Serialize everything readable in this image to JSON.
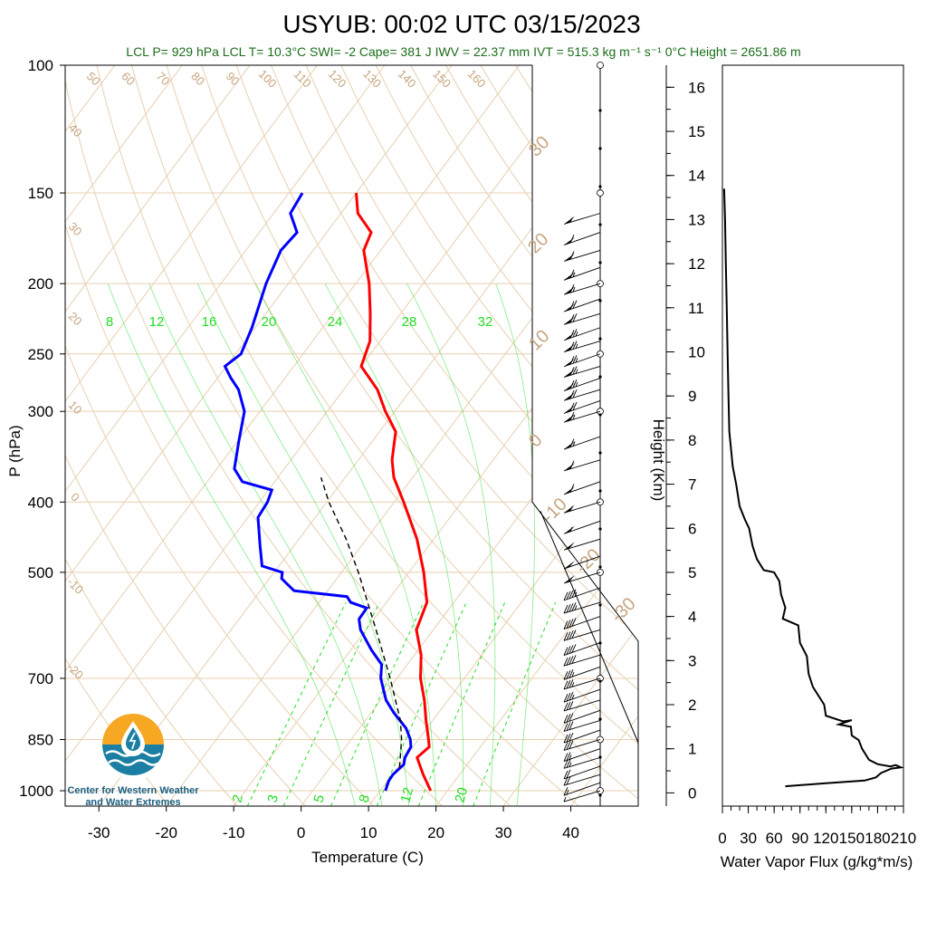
{
  "title": "USYUB: 00:02 UTC 03/15/2023",
  "stats": "LCL P= 929 hPa  LCL T= 10.3°C  SWI= -2  Cape= 381 J  IWV = 22.37 mm  IVT = 515.3 kg m⁻¹ s⁻¹  0°C Height = 2651.86 m",
  "logo": {
    "line1": "Center for Western Weather",
    "line2": "and Water Extremes"
  },
  "colors": {
    "temperature": "#ff0000",
    "dewpoint": "#0000ff",
    "parcel": "#000000",
    "background_lines": "#e8cfb0",
    "mixing_ratio": "#22dd22",
    "flux": "#000000"
  },
  "chart_data": [
    {
      "type": "line",
      "title": "USYUB: 00:02 UTC 03/15/2023",
      "xlabel": "Temperature (C)",
      "ylabel": "P (hPa)",
      "y_scale": "log",
      "xlim": [
        -35,
        50
      ],
      "ylim": [
        1050,
        100
      ],
      "x_ticks": [
        "-30",
        "-20",
        "-10",
        "0",
        "10",
        "20",
        "30",
        "40"
      ],
      "y_ticks": [
        "100",
        "150",
        "200",
        "250",
        "300",
        "400",
        "500",
        "700",
        "850",
        "1000"
      ],
      "skew_label_temps": [
        "40",
        "30",
        "20",
        "10",
        "0",
        "-10",
        "-20"
      ],
      "dry_adiabat_labels": [
        "50",
        "60",
        "70",
        "80",
        "90",
        "100",
        "110",
        "120",
        "130",
        "140",
        "150",
        "160"
      ],
      "mixing_ratio_labels_top": [
        "8",
        "12",
        "16",
        "20",
        "24",
        "28",
        "32"
      ],
      "mixing_ratio_labels_bottom": [
        "2",
        "3",
        "5",
        "8",
        "12",
        "20"
      ],
      "iso_labels_right": [
        "30",
        "20",
        "10",
        "0",
        "-10",
        "-20",
        "-30"
      ],
      "series": [
        {
          "name": "Temperature",
          "points": [
            [
              1000,
              17.5
            ],
            [
              950,
              14.6
            ],
            [
              900,
              11.8
            ],
            [
              870,
              12.4
            ],
            [
              850,
              11.5
            ],
            [
              800,
              9.0
            ],
            [
              750,
              6.5
            ],
            [
              700,
              3.5
            ],
            [
              650,
              1.0
            ],
            [
              600,
              -2.5
            ],
            [
              550,
              -4.0
            ],
            [
              500,
              -7.8
            ],
            [
              450,
              -12.5
            ],
            [
              400,
              -18.6
            ],
            [
              370,
              -22.8
            ],
            [
              350,
              -25.0
            ],
            [
              320,
              -27.6
            ],
            [
              300,
              -31.4
            ],
            [
              280,
              -35.0
            ],
            [
              260,
              -40.0
            ],
            [
              240,
              -41.5
            ],
            [
              220,
              -44.5
            ],
            [
              200,
              -48.0
            ],
            [
              180,
              -52.5
            ],
            [
              170,
              -53.4
            ],
            [
              160,
              -57.5
            ],
            [
              150,
              -60.0
            ]
          ]
        },
        {
          "name": "Dew point",
          "points": [
            [
              1000,
              10.8
            ],
            [
              970,
              10.2
            ],
            [
              950,
              10.1
            ],
            [
              920,
              10.6
            ],
            [
              900,
              10.0
            ],
            [
              870,
              9.7
            ],
            [
              850,
              8.8
            ],
            [
              820,
              6.9
            ],
            [
              780,
              3.3
            ],
            [
              750,
              0.8
            ],
            [
              700,
              -2.4
            ],
            [
              670,
              -3.8
            ],
            [
              640,
              -6.9
            ],
            [
              600,
              -10.8
            ],
            [
              580,
              -12.2
            ],
            [
              560,
              -12.3
            ],
            [
              550,
              -15.3
            ],
            [
              540,
              -16.5
            ],
            [
              530,
              -25.0
            ],
            [
              510,
              -28.2
            ],
            [
              500,
              -28.8
            ],
            [
              490,
              -32.5
            ],
            [
              460,
              -35.0
            ],
            [
              420,
              -38.5
            ],
            [
              400,
              -38.8
            ],
            [
              385,
              -39.5
            ],
            [
              375,
              -44.8
            ],
            [
              360,
              -47.4
            ],
            [
              330,
              -49.8
            ],
            [
              300,
              -52.3
            ],
            [
              280,
              -55.6
            ],
            [
              270,
              -58.0
            ],
            [
              260,
              -60.2
            ],
            [
              250,
              -59.2
            ],
            [
              230,
              -60.5
            ],
            [
              200,
              -63.3
            ],
            [
              180,
              -64.8
            ],
            [
              170,
              -64.4
            ],
            [
              160,
              -67.5
            ],
            [
              150,
              -68.0
            ]
          ]
        },
        {
          "name": "Parcel",
          "points": [
            [
              929,
              10.3
            ],
            [
              850,
              7.5
            ],
            [
              800,
              5.2
            ],
            [
              700,
              -1.0
            ],
            [
              600,
              -8.5
            ],
            [
              500,
              -17.5
            ],
            [
              450,
              -23.0
            ],
            [
              400,
              -29.7
            ],
            [
              370,
              -33.6
            ]
          ]
        }
      ],
      "wind_barbs": {
        "pressures": [
          1000,
          975,
          950,
          925,
          900,
          875,
          850,
          825,
          800,
          775,
          750,
          725,
          700,
          675,
          650,
          625,
          600,
          575,
          550,
          525,
          500,
          475,
          450,
          425,
          400,
          375,
          350,
          325,
          300,
          290,
          280,
          270,
          260,
          250,
          240,
          230,
          220,
          210,
          200,
          190,
          180,
          170,
          160
        ],
        "speeds_kt": [
          5,
          15,
          20,
          20,
          25,
          25,
          30,
          30,
          30,
          30,
          30,
          35,
          35,
          35,
          40,
          40,
          40,
          40,
          45,
          45,
          50,
          50,
          50,
          55,
          55,
          60,
          60,
          65,
          65,
          70,
          70,
          75,
          75,
          75,
          75,
          75,
          70,
          70,
          65,
          65,
          60,
          60,
          55
        ]
      }
    },
    {
      "type": "line",
      "title": "",
      "xlabel": "Water Vapor Flux (g/kg*m/s)",
      "ylabel": "Height (Km)",
      "xlim": [
        0,
        210
      ],
      "ylim": [
        -0.3,
        16.5
      ],
      "x_ticks": [
        "0",
        "30",
        "60",
        "90",
        "120",
        "150",
        "180",
        "210"
      ],
      "y_ticks": [
        "0",
        "1",
        "2",
        "3",
        "4",
        "5",
        "6",
        "7",
        "8",
        "9",
        "10",
        "11",
        "12",
        "13",
        "14",
        "15",
        "16"
      ],
      "series": [
        {
          "name": "Water Vapor Flux",
          "points": [
            [
              73,
              0.15
            ],
            [
              120,
              0.22
            ],
            [
              165,
              0.28
            ],
            [
              178,
              0.35
            ],
            [
              184,
              0.45
            ],
            [
              196,
              0.55
            ],
            [
              207,
              0.58
            ],
            [
              201,
              0.63
            ],
            [
              195,
              0.6
            ],
            [
              180,
              0.65
            ],
            [
              170,
              0.75
            ],
            [
              162,
              1.0
            ],
            [
              158,
              1.2
            ],
            [
              150,
              1.3
            ],
            [
              149,
              1.5
            ],
            [
              135,
              1.55
            ],
            [
              150,
              1.65
            ],
            [
              140,
              1.62
            ],
            [
              120,
              1.75
            ],
            [
              118,
              2.0
            ],
            [
              105,
              2.4
            ],
            [
              100,
              2.7
            ],
            [
              98,
              3.1
            ],
            [
              90,
              3.4
            ],
            [
              88,
              3.8
            ],
            [
              70,
              3.95
            ],
            [
              73,
              4.2
            ],
            [
              68,
              4.5
            ],
            [
              66,
              4.8
            ],
            [
              60,
              5.0
            ],
            [
              48,
              5.05
            ],
            [
              40,
              5.3
            ],
            [
              35,
              5.6
            ],
            [
              31,
              6.0
            ],
            [
              26,
              6.2
            ],
            [
              20,
              6.5
            ],
            [
              16,
              7.0
            ],
            [
              12,
              7.4
            ],
            [
              10,
              7.8
            ],
            [
              8,
              8.2
            ],
            [
              7,
              9.0
            ],
            [
              6,
              10.0
            ],
            [
              5,
              11.0
            ],
            [
              4,
              12.0
            ],
            [
              3,
              13.0
            ],
            [
              2,
              13.7
            ]
          ]
        }
      ]
    }
  ]
}
